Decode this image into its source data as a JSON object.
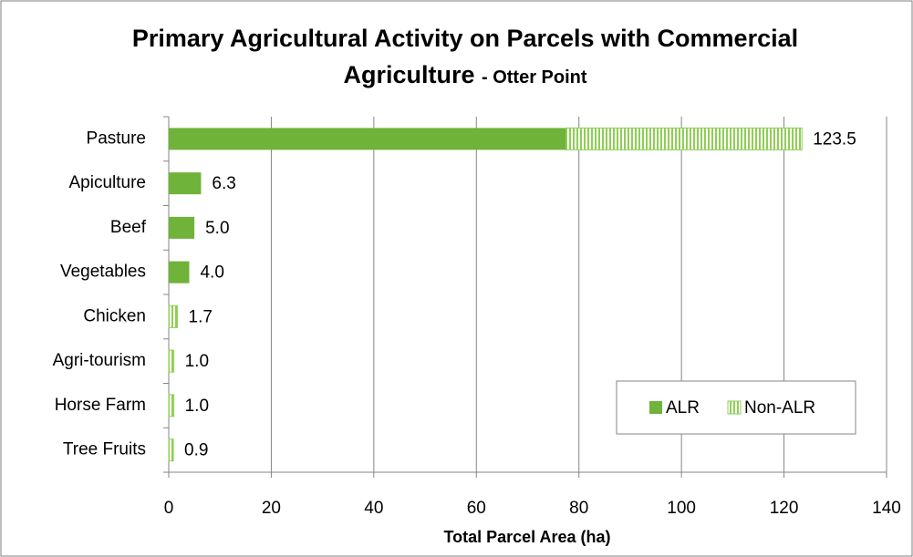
{
  "chart_data": {
    "type": "stacked-barh",
    "title": "Primary Agricultural Activity on Parcels with Commercial Agriculture",
    "subtitle": "- Otter Point",
    "x_label": "Total Parcel Area (ha)",
    "categories": [
      "Pasture",
      "Apiculture",
      "Beef",
      "Vegetables",
      "Chicken",
      "Agri-tourism",
      "Horse Farm",
      "Tree Fruits"
    ],
    "series": [
      {
        "name": "ALR",
        "color": "#6fb33a",
        "values": [
          77.5,
          6.3,
          5.0,
          4.0,
          0,
          0,
          0,
          0
        ]
      },
      {
        "name": "Non-ALR",
        "color": "#8fce55",
        "values": [
          46.0,
          0,
          0,
          0,
          1.7,
          1.0,
          1.0,
          0.9
        ]
      }
    ],
    "totals": [
      123.5,
      6.3,
      5.0,
      4.0,
      1.7,
      1.0,
      1.0,
      0.9
    ],
    "total_labels": [
      "123.5",
      "6.3",
      "5.0",
      "4.0",
      "1.7",
      "1.0",
      "1.0",
      "0.9"
    ],
    "xlim": [
      0,
      140
    ],
    "xticks": [
      0,
      20,
      40,
      60,
      80,
      100,
      120,
      140
    ],
    "grid": true,
    "legend": "lower right"
  }
}
